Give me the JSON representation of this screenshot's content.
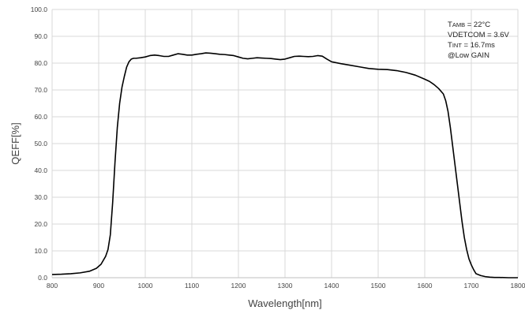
{
  "chart_data": {
    "type": "line",
    "xlabel": "Wavelength[nm]",
    "ylabel": "QEFF[%]",
    "xlim": [
      800,
      1800
    ],
    "ylim": [
      0,
      100
    ],
    "xticks": [
      "800",
      "900",
      "1000",
      "1100",
      "1200",
      "1300",
      "1400",
      "1500",
      "1600",
      "1700",
      "1800"
    ],
    "yticks": [
      "0.0",
      "10.0",
      "20.0",
      "30.0",
      "40.0",
      "50.0",
      "60.0",
      "70.0",
      "80.0",
      "90.0",
      "100.0"
    ],
    "grid": true,
    "annotations": [
      {
        "main": "T",
        "sub": "AMB",
        "rest": " = 22°C"
      },
      {
        "main": "VDETCOM = 3.6V",
        "sub": "",
        "rest": ""
      },
      {
        "main": "T",
        "sub": "INT",
        "rest": " = 16.7ms"
      },
      {
        "main": "@Low GAIN",
        "sub": "",
        "rest": ""
      }
    ],
    "line_color": "#000000",
    "series": [
      {
        "x": [
          800,
          820,
          840,
          860,
          880,
          895,
          905,
          915,
          920,
          925,
          930,
          935,
          940,
          945,
          950,
          955,
          960,
          965,
          970,
          975,
          980,
          990,
          1000,
          1010,
          1020,
          1030,
          1040,
          1050,
          1060,
          1070,
          1080,
          1090,
          1100,
          1110,
          1120,
          1130,
          1140,
          1150,
          1160,
          1170,
          1180,
          1190,
          1200,
          1210,
          1220,
          1230,
          1240,
          1250,
          1260,
          1270,
          1280,
          1290,
          1300,
          1310,
          1320,
          1330,
          1340,
          1350,
          1360,
          1370,
          1380,
          1390,
          1400,
          1420,
          1440,
          1460,
          1480,
          1500,
          1520,
          1540,
          1560,
          1580,
          1600,
          1610,
          1620,
          1630,
          1640,
          1645,
          1650,
          1655,
          1660,
          1665,
          1670,
          1675,
          1680,
          1685,
          1690,
          1695,
          1700,
          1705,
          1710,
          1720,
          1730,
          1740,
          1750,
          1760,
          1780,
          1800
        ],
        "y": [
          1.2,
          1.3,
          1.5,
          1.8,
          2.4,
          3.5,
          5.0,
          8.0,
          10.5,
          16.0,
          28.0,
          43.0,
          56.0,
          65.0,
          71.0,
          75.0,
          78.5,
          80.5,
          81.5,
          81.8,
          81.8,
          82.0,
          82.3,
          82.8,
          83.0,
          82.8,
          82.5,
          82.5,
          83.0,
          83.5,
          83.3,
          83.0,
          83.0,
          83.3,
          83.5,
          83.8,
          83.7,
          83.5,
          83.3,
          83.2,
          83.0,
          82.8,
          82.3,
          81.8,
          81.6,
          81.8,
          82.0,
          81.9,
          81.8,
          81.7,
          81.5,
          81.3,
          81.5,
          82.0,
          82.5,
          82.6,
          82.5,
          82.4,
          82.5,
          82.8,
          82.6,
          81.5,
          80.5,
          79.8,
          79.2,
          78.6,
          78.0,
          77.7,
          77.6,
          77.2,
          76.5,
          75.5,
          74.0,
          73.2,
          72.0,
          70.5,
          68.5,
          66.0,
          62.0,
          56.0,
          49.0,
          42.0,
          35.0,
          28.0,
          21.0,
          15.0,
          10.5,
          7.0,
          4.8,
          3.0,
          1.5,
          0.8,
          0.4,
          0.2,
          0.1,
          0.1,
          0.0,
          0.0
        ]
      }
    ]
  }
}
